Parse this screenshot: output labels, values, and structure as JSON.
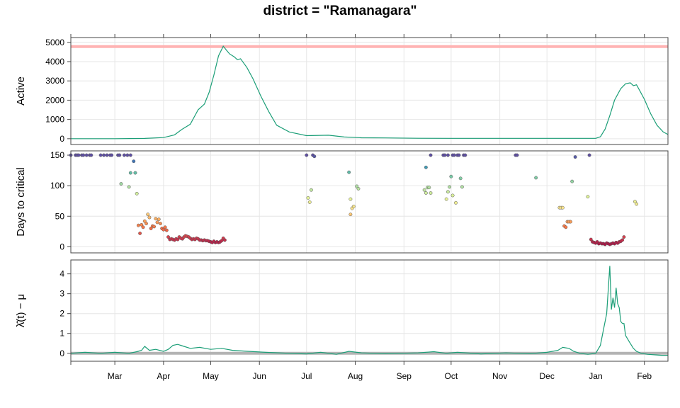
{
  "title": "district = \"Ramanagara\"",
  "colors": {
    "line": "#1b9e77",
    "ref_red": "#ffb3b3",
    "ref_grey": "#b3b3b3",
    "grid": "#e6e6e6",
    "frame": "#444444"
  },
  "chart_data": [
    {
      "id": "active",
      "type": "line",
      "ylabel": "Active",
      "ylim": [
        -300,
        5250
      ],
      "yticks": [
        0,
        1000,
        2000,
        3000,
        4000,
        5000
      ],
      "reference_line": 4780,
      "x": [
        "2021-02-01",
        "2021-03-01",
        "2021-03-20",
        "2021-04-01",
        "2021-04-08",
        "2021-04-13",
        "2021-04-18",
        "2021-04-23",
        "2021-04-27",
        "2021-04-30",
        "2021-05-03",
        "2021-05-06",
        "2021-05-09",
        "2021-05-11",
        "2021-05-13",
        "2021-05-16",
        "2021-05-18",
        "2021-05-20",
        "2021-05-24",
        "2021-05-28",
        "2021-06-02",
        "2021-06-07",
        "2021-06-12",
        "2021-06-20",
        "2021-07-01",
        "2021-07-15",
        "2021-07-25",
        "2021-08-05",
        "2021-08-20",
        "2021-09-10",
        "2021-10-01",
        "2021-10-20",
        "2021-11-10",
        "2021-12-01",
        "2021-12-20",
        "2022-01-01",
        "2022-01-04",
        "2022-01-07",
        "2022-01-10",
        "2022-01-13",
        "2022-01-17",
        "2022-01-20",
        "2022-01-23",
        "2022-01-25",
        "2022-01-27",
        "2022-01-29",
        "2022-02-01",
        "2022-02-05",
        "2022-02-09",
        "2022-02-13",
        "2022-02-16"
      ],
      "y": [
        0,
        0,
        15,
        60,
        200,
        500,
        750,
        1500,
        1800,
        2400,
        3300,
        4300,
        4800,
        4600,
        4400,
        4250,
        4100,
        4150,
        3700,
        3100,
        2200,
        1400,
        700,
        350,
        160,
        180,
        90,
        50,
        40,
        25,
        20,
        20,
        20,
        20,
        20,
        20,
        100,
        500,
        1200,
        2000,
        2600,
        2850,
        2900,
        2750,
        2800,
        2500,
        2050,
        1300,
        700,
        350,
        220
      ]
    },
    {
      "id": "days",
      "type": "scatter",
      "ylabel": "Days to critical",
      "ylim": [
        -10,
        157
      ],
      "yticks": [
        0,
        50,
        100,
        150
      ],
      "points": [
        [
          "2021-02-01",
          150
        ],
        [
          "2021-02-04",
          150
        ],
        [
          "2021-02-05",
          150
        ],
        [
          "2021-02-06",
          150
        ],
        [
          "2021-02-08",
          150
        ],
        [
          "2021-02-09",
          150
        ],
        [
          "2021-02-11",
          150
        ],
        [
          "2021-02-13",
          150
        ],
        [
          "2021-02-14",
          150
        ],
        [
          "2021-02-20",
          150
        ],
        [
          "2021-02-22",
          150
        ],
        [
          "2021-02-24",
          150
        ],
        [
          "2021-02-26",
          150
        ],
        [
          "2021-02-27",
          150
        ],
        [
          "2021-03-03",
          150
        ],
        [
          "2021-03-04",
          150
        ],
        [
          "2021-03-07",
          150
        ],
        [
          "2021-03-09",
          150
        ],
        [
          "2021-03-11",
          150
        ],
        [
          "2021-03-13",
          140
        ],
        [
          "2021-03-11",
          121
        ],
        [
          "2021-03-14",
          121
        ],
        [
          "2021-03-05",
          103
        ],
        [
          "2021-03-10",
          98
        ],
        [
          "2021-03-15",
          87
        ],
        [
          "2021-03-16",
          35
        ],
        [
          "2021-03-17",
          22
        ],
        [
          "2021-03-18",
          36
        ],
        [
          "2021-03-19",
          32
        ],
        [
          "2021-03-20",
          42
        ],
        [
          "2021-03-21",
          38
        ],
        [
          "2021-03-22",
          53
        ],
        [
          "2021-03-23",
          48
        ],
        [
          "2021-03-24",
          30
        ],
        [
          "2021-03-25",
          34
        ],
        [
          "2021-03-26",
          33
        ],
        [
          "2021-03-27",
          46
        ],
        [
          "2021-03-28",
          40
        ],
        [
          "2021-03-29",
          45
        ],
        [
          "2021-03-30",
          38
        ],
        [
          "2021-03-31",
          30
        ],
        [
          "2021-04-01",
          28
        ],
        [
          "2021-04-02",
          32
        ],
        [
          "2021-04-03",
          27
        ],
        [
          "2021-04-04",
          16
        ],
        [
          "2021-04-05",
          12
        ],
        [
          "2021-04-06",
          13
        ],
        [
          "2021-04-07",
          12
        ],
        [
          "2021-04-08",
          11
        ],
        [
          "2021-04-09",
          13
        ],
        [
          "2021-04-10",
          12
        ],
        [
          "2021-04-11",
          16
        ],
        [
          "2021-04-12",
          14
        ],
        [
          "2021-04-13",
          13
        ],
        [
          "2021-04-14",
          16
        ],
        [
          "2021-04-15",
          18
        ],
        [
          "2021-04-16",
          17
        ],
        [
          "2021-04-17",
          16
        ],
        [
          "2021-04-18",
          14
        ],
        [
          "2021-04-19",
          12
        ],
        [
          "2021-04-20",
          13
        ],
        [
          "2021-04-21",
          12
        ],
        [
          "2021-04-22",
          14
        ],
        [
          "2021-04-23",
          13
        ],
        [
          "2021-04-24",
          11
        ],
        [
          "2021-04-25",
          11
        ],
        [
          "2021-04-26",
          10
        ],
        [
          "2021-04-27",
          11
        ],
        [
          "2021-04-28",
          10
        ],
        [
          "2021-04-29",
          10
        ],
        [
          "2021-04-30",
          9
        ],
        [
          "2021-05-01",
          8
        ],
        [
          "2021-05-02",
          7
        ],
        [
          "2021-05-03",
          9
        ],
        [
          "2021-05-04",
          7
        ],
        [
          "2021-05-05",
          8
        ],
        [
          "2021-05-06",
          7
        ],
        [
          "2021-05-07",
          8
        ],
        [
          "2021-05-08",
          10
        ],
        [
          "2021-05-09",
          14
        ],
        [
          "2021-05-10",
          11
        ],
        [
          "2021-07-01",
          150
        ],
        [
          "2021-07-05",
          150
        ],
        [
          "2021-07-06",
          148
        ],
        [
          "2021-07-02",
          80
        ],
        [
          "2021-07-03",
          73
        ],
        [
          "2021-07-04",
          93
        ],
        [
          "2021-07-28",
          122
        ],
        [
          "2021-07-29",
          78
        ],
        [
          "2021-07-30",
          63
        ],
        [
          "2021-07-31",
          66
        ],
        [
          "2021-07-29",
          53
        ],
        [
          "2021-08-02",
          99
        ],
        [
          "2021-08-03",
          95
        ],
        [
          "2021-09-15",
          130
        ],
        [
          "2021-09-18",
          150
        ],
        [
          "2021-09-26",
          150
        ],
        [
          "2021-09-27",
          150
        ],
        [
          "2021-09-29",
          150
        ],
        [
          "2021-10-02",
          150
        ],
        [
          "2021-10-03",
          150
        ],
        [
          "2021-10-05",
          150
        ],
        [
          "2021-10-06",
          150
        ],
        [
          "2021-10-09",
          150
        ],
        [
          "2021-10-10",
          150
        ],
        [
          "2021-09-14",
          93
        ],
        [
          "2021-09-15",
          88
        ],
        [
          "2021-09-16",
          97
        ],
        [
          "2021-09-17",
          97
        ],
        [
          "2021-09-18",
          88
        ],
        [
          "2021-09-28",
          78
        ],
        [
          "2021-09-29",
          90
        ],
        [
          "2021-09-30",
          98
        ],
        [
          "2021-10-01",
          115
        ],
        [
          "2021-10-02",
          84
        ],
        [
          "2021-10-04",
          72
        ],
        [
          "2021-10-07",
          112
        ],
        [
          "2021-10-08",
          98
        ],
        [
          "2021-11-11",
          150
        ],
        [
          "2021-11-12",
          150
        ],
        [
          "2021-11-24",
          113
        ],
        [
          "2021-12-09",
          64
        ],
        [
          "2021-12-10",
          64
        ],
        [
          "2021-12-11",
          64
        ],
        [
          "2021-12-12",
          34
        ],
        [
          "2021-12-13",
          32
        ],
        [
          "2021-12-14",
          41
        ],
        [
          "2021-12-15",
          41
        ],
        [
          "2021-12-16",
          41
        ],
        [
          "2021-12-17",
          107
        ],
        [
          "2021-12-19",
          147
        ],
        [
          "2021-12-28",
          150
        ],
        [
          "2021-12-27",
          82
        ],
        [
          "2021-12-29",
          12
        ],
        [
          "2021-12-30",
          8
        ],
        [
          "2021-12-31",
          7
        ],
        [
          "2022-01-01",
          6
        ],
        [
          "2022-01-02",
          8
        ],
        [
          "2022-01-03",
          5
        ],
        [
          "2022-01-04",
          6
        ],
        [
          "2022-01-05",
          5
        ],
        [
          "2022-01-06",
          5
        ],
        [
          "2022-01-07",
          4
        ],
        [
          "2022-01-08",
          6
        ],
        [
          "2022-01-09",
          5
        ],
        [
          "2022-01-10",
          4
        ],
        [
          "2022-01-11",
          5
        ],
        [
          "2022-01-12",
          6
        ],
        [
          "2022-01-13",
          5
        ],
        [
          "2022-01-14",
          7
        ],
        [
          "2022-01-15",
          6
        ],
        [
          "2022-01-16",
          8
        ],
        [
          "2022-01-17",
          9
        ],
        [
          "2022-01-18",
          11
        ],
        [
          "2022-01-19",
          16
        ],
        [
          "2022-01-26",
          74
        ],
        [
          "2022-01-27",
          70
        ]
      ]
    },
    {
      "id": "lambda",
      "type": "line",
      "ylabel": "λ̂(t) − μ",
      "ylim": [
        -0.4,
        4.7
      ],
      "yticks": [
        0,
        1,
        2,
        3,
        4
      ],
      "reference_line": 0,
      "x": [
        "2021-02-01",
        "2021-02-10",
        "2021-02-20",
        "2021-03-01",
        "2021-03-10",
        "2021-03-15",
        "2021-03-18",
        "2021-03-20",
        "2021-03-23",
        "2021-03-27",
        "2021-04-01",
        "2021-04-04",
        "2021-04-07",
        "2021-04-10",
        "2021-04-14",
        "2021-04-18",
        "2021-04-24",
        "2021-05-01",
        "2021-05-08",
        "2021-05-15",
        "2021-05-25",
        "2021-06-05",
        "2021-06-20",
        "2021-07-01",
        "2021-07-10",
        "2021-07-20",
        "2021-07-28",
        "2021-08-05",
        "2021-08-20",
        "2021-09-10",
        "2021-09-20",
        "2021-09-28",
        "2021-10-05",
        "2021-10-20",
        "2021-11-05",
        "2021-11-20",
        "2021-12-01",
        "2021-12-08",
        "2021-12-11",
        "2021-12-15",
        "2021-12-18",
        "2021-12-22",
        "2021-12-27",
        "2022-01-01",
        "2022-01-04",
        "2022-01-06",
        "2022-01-08",
        "2022-01-10",
        "2022-01-11",
        "2022-01-12",
        "2022-01-13",
        "2022-01-14",
        "2022-01-15",
        "2022-01-16",
        "2022-01-17",
        "2022-01-18",
        "2022-01-19",
        "2022-01-20",
        "2022-01-23",
        "2022-01-25",
        "2022-01-27",
        "2022-01-30",
        "2022-02-03",
        "2022-02-08",
        "2022-02-12",
        "2022-02-16"
      ],
      "y": [
        0.0,
        0.05,
        0.0,
        0.05,
        0.0,
        0.08,
        0.15,
        0.35,
        0.15,
        0.2,
        0.1,
        0.2,
        0.4,
        0.45,
        0.35,
        0.25,
        0.3,
        0.2,
        0.25,
        0.15,
        0.1,
        0.05,
        0.0,
        -0.03,
        0.05,
        -0.05,
        0.1,
        0.02,
        -0.02,
        0.02,
        0.08,
        0.0,
        0.05,
        -0.03,
        0.02,
        -0.02,
        0.05,
        0.15,
        0.3,
        0.25,
        0.1,
        0.0,
        -0.05,
        0.0,
        0.4,
        1.2,
        2.0,
        4.4,
        2.2,
        2.8,
        2.3,
        3.3,
        2.5,
        2.3,
        1.6,
        1.5,
        1.5,
        0.9,
        0.5,
        0.25,
        0.1,
        0.0,
        -0.05,
        -0.08,
        -0.1,
        -0.1
      ]
    }
  ],
  "x_axis": {
    "labels": [
      "Mar",
      "Apr",
      "May",
      "Jun",
      "Jul",
      "Aug",
      "Sep",
      "Oct",
      "Nov",
      "Dec",
      "Jan",
      "Feb"
    ],
    "dates": [
      "2021-03-01",
      "2021-04-01",
      "2021-05-01",
      "2021-06-01",
      "2021-07-01",
      "2021-08-01",
      "2021-09-01",
      "2021-10-01",
      "2021-11-01",
      "2021-12-01",
      "2022-01-01",
      "2022-02-01"
    ],
    "range": [
      "2021-02-01",
      "2022-02-16"
    ]
  }
}
